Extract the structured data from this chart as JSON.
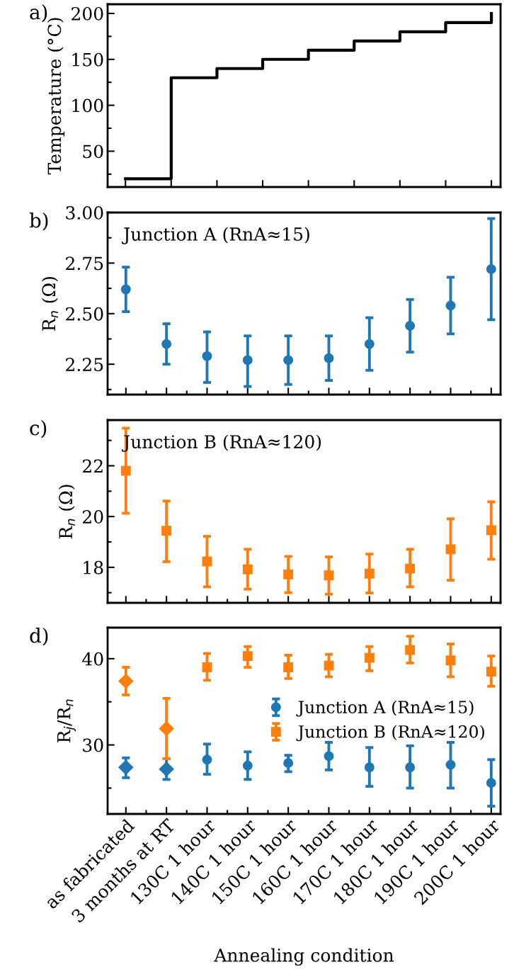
{
  "chart_data": [
    {
      "type": "step",
      "ylabel": "Temperature (°C)",
      "annotations": [
        "a)"
      ],
      "categories": [
        null,
        null,
        null,
        null,
        null,
        null,
        null,
        null,
        null
      ],
      "ylim": [
        11,
        210
      ],
      "yticks": [
        {
          "value": 25,
          "label": null
        },
        50,
        {
          "value": 75,
          "label": null
        },
        100,
        {
          "value": 125,
          "label": null
        },
        150,
        {
          "value": 175,
          "label": null
        },
        200
      ],
      "series": [
        {
          "color": "#000000",
          "values": [
            20,
            130,
            140,
            150,
            160,
            170,
            180,
            190,
            200
          ]
        }
      ],
      "tick_labels": "y",
      "grid": false,
      "legend": false,
      "marker": "none",
      "line_style": "solid"
    },
    {
      "type": "scatter",
      "ylabel": "R$_{n}$ (Ω)",
      "annotations": [
        "b)",
        "Junction A (RnA≈15)"
      ],
      "categories": [
        null,
        null,
        null,
        null,
        null,
        null,
        null,
        null,
        null,
        null
      ],
      "ylim": [
        2.1,
        3.0
      ],
      "yticks": [
        {
          "value": 2.125,
          "label": null
        },
        {
          "value": 2.25,
          "label": "2.25"
        },
        {
          "value": 2.375,
          "label": null
        },
        {
          "value": 2.5,
          "label": "2.50"
        },
        {
          "value": 2.625,
          "label": null
        },
        {
          "value": 2.75,
          "label": "2.75"
        },
        {
          "value": 2.875,
          "label": null
        },
        {
          "value": 3.0,
          "label": "3.00"
        }
      ],
      "series": [
        {
          "color": "#1f77b4",
          "marker": "circle",
          "values": [
            2.62,
            2.35,
            2.29,
            2.27,
            2.27,
            2.28,
            2.35,
            2.44,
            2.54,
            2.72
          ],
          "errors": [
            [
              2.51,
              2.73
            ],
            [
              2.25,
              2.45
            ],
            [
              2.16,
              2.41
            ],
            [
              2.14,
              2.39
            ],
            [
              2.15,
              2.39
            ],
            [
              2.17,
              2.39
            ],
            [
              2.22,
              2.48
            ],
            [
              2.31,
              2.57
            ],
            [
              2.4,
              2.68
            ],
            [
              2.47,
              2.97
            ]
          ]
        }
      ],
      "tick_labels": "y",
      "grid": false,
      "legend": false
    },
    {
      "type": "scatter",
      "ylabel": "R$_{n}$ (Ω)",
      "annotations": [
        "c)",
        "Junction B (RnA≈120)"
      ],
      "categories": [
        null,
        null,
        null,
        null,
        null,
        null,
        null,
        null,
        null,
        null
      ],
      "ylim": [
        16.6,
        23.8
      ],
      "yticks": [
        {
          "value": 17,
          "label": null
        },
        18,
        {
          "value": 19,
          "label": null
        },
        20,
        {
          "value": 21,
          "label": null
        },
        22,
        {
          "value": 23,
          "label": null
        }
      ],
      "series": [
        {
          "color": "#ff7f0e",
          "marker": "square",
          "values": [
            21.8,
            19.44,
            18.23,
            17.92,
            17.72,
            17.68,
            17.75,
            17.95,
            18.71,
            19.46
          ],
          "errors": [
            [
              20.13,
              23.48
            ],
            [
              18.22,
              20.61
            ],
            [
              17.23,
              19.22
            ],
            [
              17.14,
              18.71
            ],
            [
              17.0,
              18.43
            ],
            [
              16.94,
              18.41
            ],
            [
              16.99,
              18.52
            ],
            [
              17.23,
              18.71
            ],
            [
              17.49,
              19.91
            ],
            [
              18.32,
              20.58
            ]
          ]
        }
      ],
      "tick_labels": "y",
      "grid": false,
      "legend": false
    },
    {
      "type": "scatter",
      "ylabel": "R$_{j}$/R$_{n}$",
      "xlabel": "Annealing condition",
      "annotations": [
        "d)"
      ],
      "categories": [
        "as fabricated",
        "3 months at RT",
        "130C 1 hour",
        "140C 1 hour",
        "150C 1 hour",
        "160C 1 hour",
        "170C 1 hour",
        "180C 1 hour",
        "190C 1 hour",
        "200C 1 hour"
      ],
      "ylim": [
        22,
        43.6
      ],
      "yticks": [
        {
          "value": 25,
          "label": null
        },
        30,
        {
          "value": 35,
          "label": null
        },
        40
      ],
      "series": [
        {
          "name": "Junction A (RnA≈15)",
          "color": "#1f77b4",
          "marker": "circle",
          "values": [
            null,
            null,
            28.3,
            27.6,
            27.9,
            28.7,
            27.4,
            27.4,
            27.7,
            25.6
          ],
          "errors": [
            null,
            null,
            [
              26.6,
              30.1
            ],
            [
              26.0,
              29.2
            ],
            [
              26.9,
              28.8
            ],
            [
              27.1,
              30.3
            ],
            [
              25.2,
              29.7
            ],
            [
              25.0,
              29.9
            ],
            [
              25.0,
              30.3
            ],
            [
              22.9,
              28.3
            ]
          ]
        },
        {
          "name": "Junction B (RnA≈120)",
          "color": "#ff7f0e",
          "marker": "square",
          "values": [
            null,
            null,
            39.0,
            40.3,
            39.0,
            39.2,
            40.1,
            41.0,
            39.8,
            38.5
          ],
          "errors": [
            null,
            null,
            [
              37.5,
              40.6
            ],
            [
              39.0,
              41.4
            ],
            [
              37.7,
              40.4
            ],
            [
              37.9,
              40.5
            ],
            [
              38.6,
              41.4
            ],
            [
              39.5,
              42.6
            ],
            [
              37.9,
              41.7
            ],
            [
              36.8,
              40.3
            ]
          ]
        },
        {
          "color": "#1f77b4",
          "marker": "diamond",
          "values": [
            27.4,
            27.2,
            null,
            null,
            null,
            null,
            null,
            null,
            null,
            null
          ],
          "errors": [
            [
              26.2,
              28.5
            ],
            [
              26.0,
              28.4
            ],
            null,
            null,
            null,
            null,
            null,
            null,
            null,
            null
          ]
        },
        {
          "color": "#ff7f0e",
          "marker": "diamond",
          "values": [
            37.4,
            31.9,
            null,
            null,
            null,
            null,
            null,
            null,
            null,
            null
          ],
          "errors": [
            [
              35.8,
              39.0
            ],
            [
              28.4,
              35.4
            ],
            null,
            null,
            null,
            null,
            null,
            null,
            null,
            null
          ]
        }
      ],
      "grid": false,
      "legend": "center right"
    }
  ]
}
